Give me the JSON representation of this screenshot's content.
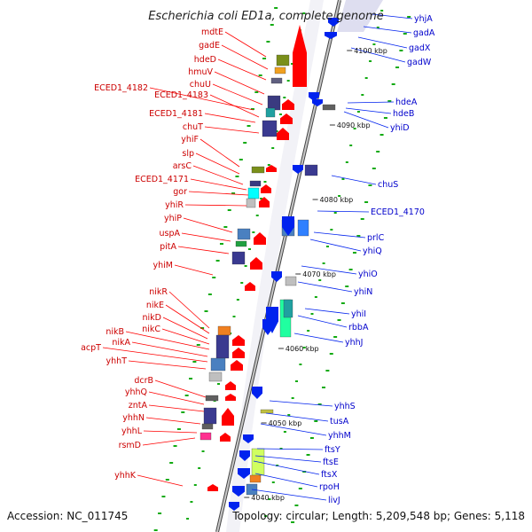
{
  "title": "Escherichia coli ED1a, complete genome",
  "footer": {
    "accession": "Accession: NC_011745",
    "stats": "Topology: circular; Length: 5,209,548 bp; Genes: 5,118"
  },
  "colors": {
    "forward_label": "#cc0000",
    "reverse_label": "#0000cc",
    "forward_arrow": "#ff0000",
    "reverse_arrow": "#0022ee",
    "backbone": "#888888",
    "tick_dot": "#11aa11"
  },
  "scale_ticks": [
    {
      "label": "4100 kbp"
    },
    {
      "label": "4090 kbp"
    },
    {
      "label": "4080 kbp"
    },
    {
      "label": "4070 kbp"
    },
    {
      "label": "4060 kbp"
    },
    {
      "label": "4050 kbp"
    },
    {
      "label": "4040 kbp"
    }
  ],
  "forward_genes": [
    "mdtE",
    "gadE",
    "hdeD",
    "hmuV",
    "chuU",
    "ECED1_4182",
    "ECED1_4183",
    "ECED1_4181",
    "chuT",
    "yhiF",
    "slp",
    "arsC",
    "ECED1_4171",
    "gor",
    "yhiR",
    "yhiP",
    "uspA",
    "pitA",
    "yhiM",
    "nikR",
    "nikE",
    "nikD",
    "nikC",
    "nikB",
    "nikA",
    "acpT",
    "yhhT",
    "dcrB",
    "yhhQ",
    "zntA",
    "yhhN",
    "yhhL",
    "rsmD",
    "yhhK"
  ],
  "reverse_genes": [
    "yhjA",
    "gadA",
    "gadX",
    "gadW",
    "hdeA",
    "hdeB",
    "yhiD",
    "chuS",
    "ECED1_4170",
    "prlC",
    "yhiQ",
    "yhiO",
    "yhiN",
    "yhiI",
    "rbbA",
    "yhhJ",
    "yhhS",
    "tusA",
    "yhhM",
    "ftsY",
    "ftsE",
    "ftsX",
    "rpoH",
    "livJ"
  ]
}
